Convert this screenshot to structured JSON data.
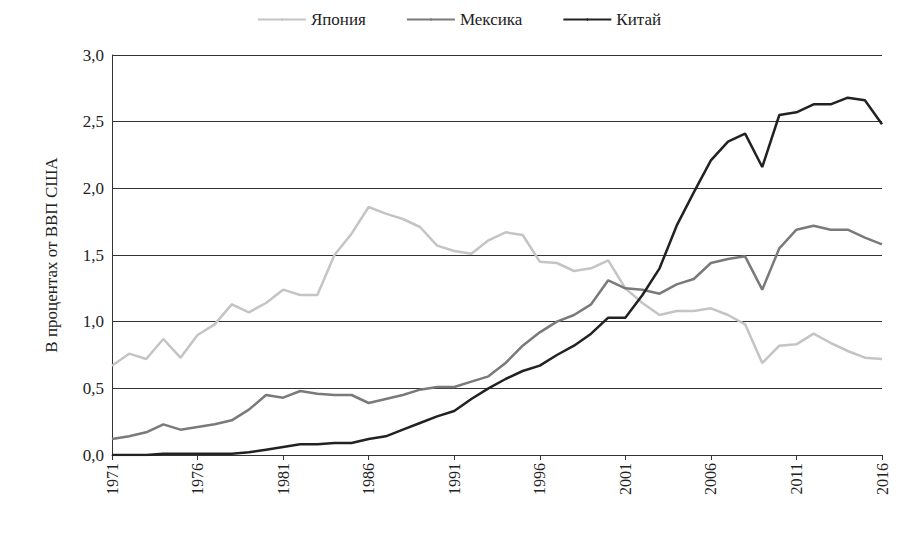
{
  "chart_data": {
    "type": "line",
    "y_label": "В процентах от ВВП США",
    "categories": [
      "1971",
      null,
      null,
      null,
      null,
      "1976",
      null,
      null,
      null,
      null,
      "1981",
      null,
      null,
      null,
      null,
      "1986",
      null,
      null,
      null,
      null,
      "1991",
      null,
      null,
      null,
      null,
      "1996",
      null,
      null,
      null,
      null,
      "2001",
      null,
      null,
      null,
      null,
      "2006",
      null,
      null,
      null,
      null,
      "2011",
      null,
      null,
      null,
      null,
      "2016"
    ],
    "series": [
      {
        "name": "Япония",
        "color": "#c4c4c4",
        "line_style": "solid",
        "values": [
          0.67,
          0.76,
          0.72,
          0.87,
          0.73,
          0.9,
          0.98,
          1.13,
          1.07,
          1.14,
          1.24,
          1.2,
          1.2,
          1.5,
          1.66,
          1.86,
          1.81,
          1.77,
          1.71,
          1.57,
          1.53,
          1.51,
          1.61,
          1.67,
          1.65,
          1.45,
          1.44,
          1.38,
          1.4,
          1.46,
          1.25,
          1.14,
          1.05,
          1.08,
          1.08,
          1.1,
          1.05,
          0.98,
          0.69,
          0.82,
          0.83,
          0.91,
          0.84,
          0.78,
          0.73,
          0.72
        ]
      },
      {
        "name": "Мексика",
        "color": "#7a7a7a",
        "line_style": "solid",
        "values": [
          0.12,
          0.14,
          0.17,
          0.23,
          0.19,
          0.21,
          0.23,
          0.26,
          0.34,
          0.45,
          0.43,
          0.48,
          0.46,
          0.45,
          0.45,
          0.39,
          0.42,
          0.45,
          0.49,
          0.51,
          0.51,
          0.55,
          0.59,
          0.69,
          0.82,
          0.92,
          1.0,
          1.05,
          1.13,
          1.31,
          1.25,
          1.24,
          1.21,
          1.28,
          1.32,
          1.44,
          1.47,
          1.49,
          1.24,
          1.55,
          1.69,
          1.72,
          1.69,
          1.69,
          1.63,
          1.58
        ]
      },
      {
        "name": "Китай",
        "color": "#222222",
        "line_style": "solid",
        "values": [
          0,
          0,
          0,
          0.01,
          0.01,
          0.01,
          0.01,
          0.01,
          0.02,
          0.04,
          0.06,
          0.08,
          0.08,
          0.09,
          0.09,
          0.12,
          0.14,
          0.19,
          0.24,
          0.29,
          0.33,
          0.42,
          0.5,
          0.57,
          0.63,
          0.67,
          0.75,
          0.82,
          0.91,
          1.03,
          1.03,
          1.2,
          1.4,
          1.72,
          1.97,
          2.21,
          2.35,
          2.41,
          2.16,
          2.55,
          2.57,
          2.63,
          2.63,
          2.68,
          2.66,
          2.48
        ]
      }
    ],
    "ylim": [
      0,
      3
    ],
    "yticks": [
      {
        "value": 0,
        "label": "0,0"
      },
      {
        "value": 0.5,
        "label": "0,5"
      },
      {
        "value": 1,
        "label": "1,0"
      },
      {
        "value": 1.5,
        "label": "1,5"
      },
      {
        "value": 2,
        "label": "2,0"
      },
      {
        "value": 2.5,
        "label": "2,5"
      },
      {
        "value": 3,
        "label": "3,0"
      }
    ],
    "grid": true,
    "legend": "top"
  }
}
